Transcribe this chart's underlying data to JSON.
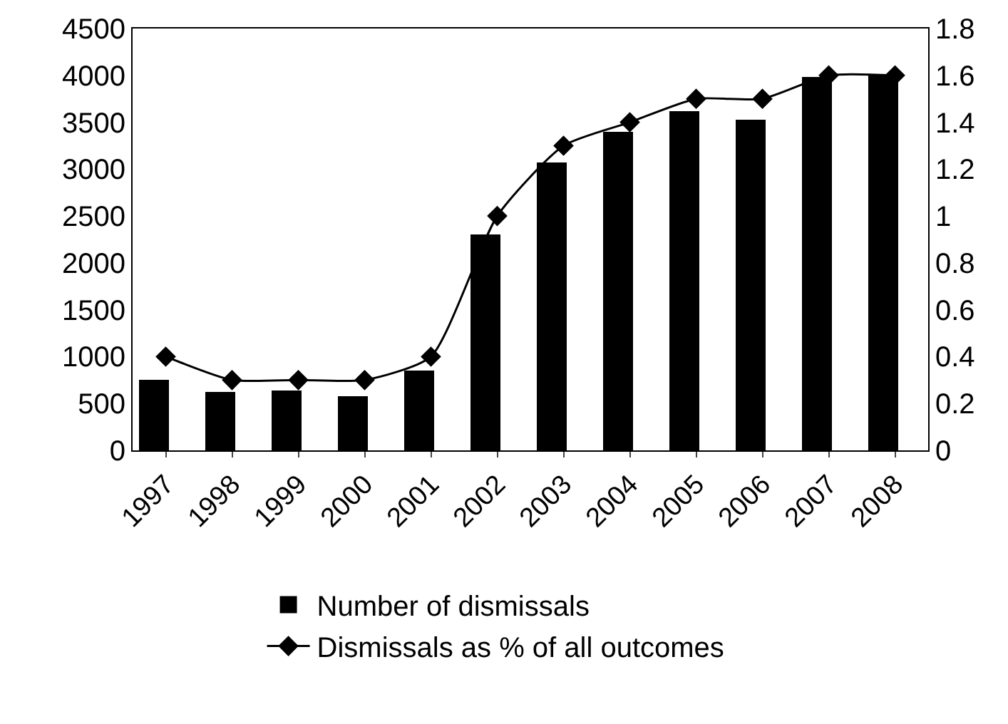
{
  "chart_data": {
    "type": "bar",
    "categories": [
      "1997",
      "1998",
      "1999",
      "2000",
      "2001",
      "2002",
      "2003",
      "2004",
      "2005",
      "2006",
      "2007",
      "2008"
    ],
    "series": [
      {
        "name": "Number of dismissals",
        "color": "#000000",
        "values": [
          750,
          620,
          640,
          580,
          850,
          2300,
          3070,
          3400,
          3620,
          3530,
          3980,
          4010
        ]
      },
      {
        "name": "Dismissals as % of all outcomes",
        "type": "line",
        "axis": "y2",
        "color": "#000000",
        "marker": "diamond",
        "line_style": "solid",
        "values": [
          0.4,
          0.3,
          0.3,
          0.3,
          0.4,
          1.0,
          1.3,
          1.4,
          1.5,
          1.5,
          1.6,
          1.6
        ]
      }
    ],
    "ylim": [
      0,
      4500
    ],
    "yticks": [
      0,
      500,
      1000,
      1500,
      2000,
      2500,
      3000,
      3500,
      4000,
      4500
    ],
    "y2lim": [
      0,
      1.8
    ],
    "y2ticks": [
      0,
      0.2,
      0.4,
      0.6,
      0.8,
      1,
      1.2,
      1.4,
      1.6,
      1.8
    ],
    "grid": false,
    "legend": "bottom"
  }
}
